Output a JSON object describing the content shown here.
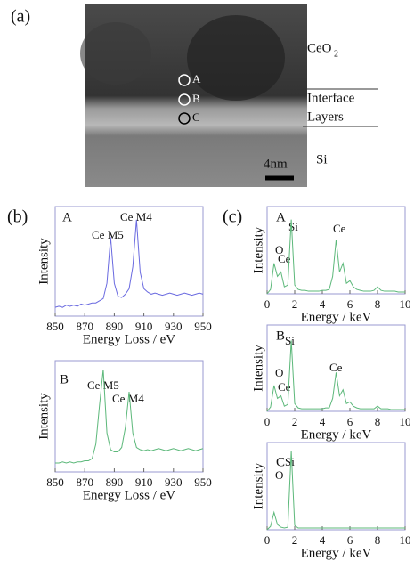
{
  "figure": {
    "panels": [
      "(a)",
      "(b)",
      "(c)"
    ],
    "micrograph": {
      "layer_labels": [
        "CeO",
        "2",
        "Interface",
        "Layers",
        "Si"
      ],
      "points": [
        "A",
        "B",
        "C"
      ],
      "scale_bar": "4nm"
    }
  },
  "chart_data": [
    {
      "type": "line",
      "title": "A",
      "x_label": "Energy Loss / eV",
      "y_label": "Intensity",
      "annotations": [
        "Ce M5",
        "Ce M4"
      ],
      "x": [
        850,
        852.5,
        855,
        857.5,
        860,
        862.5,
        865,
        867.5,
        870,
        872.5,
        875,
        877.5,
        880,
        882.5,
        885,
        887.5,
        890,
        892.5,
        895,
        897.5,
        900,
        902.5,
        905,
        907.5,
        910,
        912.5,
        915,
        917.5,
        920,
        922.5,
        925,
        927.5,
        930,
        932.5,
        935,
        937.5,
        940,
        942.5,
        945,
        947.5,
        950
      ],
      "series": [
        {
          "color": "#6a6ae0",
          "values": [
            8,
            9,
            8,
            10,
            9,
            10,
            9,
            11,
            10,
            11,
            12,
            12,
            14,
            16,
            30,
            72,
            30,
            18,
            17,
            20,
            25,
            45,
            88,
            40,
            25,
            22,
            20,
            21,
            20,
            19,
            20,
            21,
            20,
            19,
            20,
            21,
            20,
            19,
            20,
            21,
            20
          ]
        }
      ],
      "xlim": [
        850,
        950
      ],
      "xticks": [
        850,
        870,
        890,
        910,
        930,
        950
      ],
      "ylim": [
        0,
        100
      ]
    },
    {
      "type": "line",
      "title": "B",
      "x_label": "Energy Loss / eV",
      "y_label": "Intensity",
      "annotations": [
        "Ce M5",
        "Ce M4"
      ],
      "x": [
        850,
        852.5,
        855,
        857.5,
        860,
        862.5,
        865,
        867.5,
        870,
        872.5,
        875,
        877.5,
        880,
        882.5,
        885,
        887.5,
        890,
        892.5,
        895,
        897.5,
        900,
        902.5,
        905,
        907.5,
        910,
        912.5,
        915,
        917.5,
        920,
        922.5,
        925,
        927.5,
        930,
        932.5,
        935,
        937.5,
        940,
        942.5,
        945,
        947.5,
        950
      ],
      "series": [
        {
          "color": "#5cb87a",
          "values": [
            8,
            8,
            9,
            8,
            9,
            8,
            9,
            9,
            10,
            10,
            12,
            25,
            60,
            92,
            35,
            20,
            18,
            18,
            22,
            40,
            72,
            35,
            22,
            20,
            19,
            20,
            19,
            20,
            21,
            20,
            19,
            20,
            21,
            20,
            19,
            20,
            21,
            20,
            19,
            20,
            21
          ]
        }
      ],
      "xlim": [
        850,
        950
      ],
      "xticks": [
        850,
        870,
        890,
        910,
        930,
        950
      ],
      "ylim": [
        0,
        100
      ]
    },
    {
      "type": "line",
      "title": "A",
      "x_label": "Energy / keV",
      "y_label": "Intensity",
      "annotations": [
        "O",
        "Ce",
        "Si",
        "Ce"
      ],
      "x": [
        0,
        0.25,
        0.5,
        0.75,
        1,
        1.25,
        1.5,
        1.75,
        2,
        2.25,
        2.5,
        2.75,
        3,
        3.25,
        3.5,
        3.75,
        4,
        4.25,
        4.5,
        4.75,
        5,
        5.25,
        5.5,
        5.75,
        6,
        6.25,
        6.5,
        6.75,
        7,
        7.25,
        7.5,
        7.75,
        8,
        8.25,
        8.5,
        8.75,
        9,
        9.25,
        9.5,
        9.75,
        10
      ],
      "series": [
        {
          "color": "#5cb87a",
          "values": [
            0,
            5,
            35,
            20,
            25,
            8,
            10,
            85,
            10,
            5,
            4,
            4,
            3,
            3,
            3,
            3,
            4,
            4,
            5,
            20,
            62,
            25,
            35,
            12,
            15,
            8,
            5,
            4,
            3,
            3,
            3,
            4,
            8,
            4,
            3,
            3,
            3,
            3,
            2,
            2,
            2
          ]
        }
      ],
      "xlim": [
        0,
        10
      ],
      "xticks": [
        0,
        2,
        4,
        6,
        8,
        10
      ],
      "ylim": [
        0,
        100
      ]
    },
    {
      "type": "line",
      "title": "B",
      "x_label": "Energy / keV",
      "y_label": "Intensity",
      "annotations": [
        "Si",
        "O",
        "Ce",
        "Ce"
      ],
      "x": [
        0,
        0.25,
        0.5,
        0.75,
        1,
        1.25,
        1.5,
        1.75,
        2,
        2.25,
        2.5,
        2.75,
        3,
        3.25,
        3.5,
        3.75,
        4,
        4.25,
        4.5,
        4.75,
        5,
        5.25,
        5.5,
        5.75,
        6,
        6.25,
        6.5,
        6.75,
        7,
        7.25,
        7.5,
        7.75,
        8,
        8.25,
        8.5,
        8.75,
        9,
        9.25,
        9.5,
        9.75,
        10
      ],
      "series": [
        {
          "color": "#5cb87a",
          "values": [
            0,
            5,
            30,
            15,
            18,
            6,
            8,
            82,
            9,
            4,
            3,
            3,
            3,
            3,
            3,
            3,
            3,
            4,
            4,
            15,
            45,
            18,
            25,
            9,
            11,
            6,
            4,
            3,
            3,
            3,
            3,
            3,
            6,
            3,
            3,
            3,
            2,
            2,
            2,
            2,
            2
          ]
        }
      ],
      "xlim": [
        0,
        10
      ],
      "xticks": [
        0,
        2,
        4,
        6,
        8,
        10
      ],
      "ylim": [
        0,
        100
      ]
    },
    {
      "type": "line",
      "title": "C",
      "x_label": "Energy / keV",
      "y_label": "Intensity",
      "annotations": [
        "Si",
        "O"
      ],
      "x": [
        0,
        0.25,
        0.5,
        0.75,
        1,
        1.25,
        1.5,
        1.75,
        2,
        2.25,
        2.5,
        2.75,
        3,
        3.25,
        3.5,
        3.75,
        4,
        4.25,
        4.5,
        4.75,
        5,
        5.25,
        5.5,
        5.75,
        6,
        6.25,
        6.5,
        6.75,
        7,
        7.25,
        7.5,
        7.75,
        8,
        8.25,
        8.5,
        8.75,
        9,
        9.25,
        9.5,
        9.75,
        10
      ],
      "series": [
        {
          "color": "#5cb87a",
          "values": [
            0,
            4,
            20,
            6,
            3,
            2,
            3,
            90,
            5,
            2,
            2,
            2,
            2,
            2,
            2,
            2,
            2,
            2,
            2,
            2,
            2,
            2,
            2,
            2,
            2,
            2,
            2,
            2,
            2,
            2,
            2,
            2,
            2,
            2,
            2,
            2,
            2,
            2,
            2,
            2,
            2
          ]
        }
      ],
      "xlim": [
        0,
        10
      ],
      "xticks": [
        0,
        2,
        4,
        6,
        8,
        10
      ],
      "ylim": [
        0,
        100
      ]
    }
  ]
}
